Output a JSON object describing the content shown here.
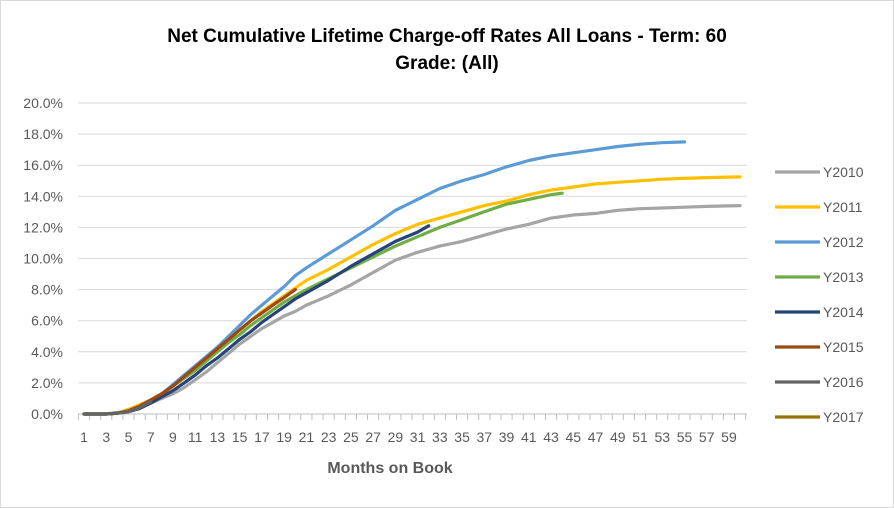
{
  "chart_data": {
    "type": "line",
    "title_lines": [
      "Net Cumulative Lifetime Charge-off Rates All Loans - Term: 60",
      "Grade: (All)"
    ],
    "xlabel": "Months on Book",
    "ylabel": "",
    "xlim": [
      1,
      60
    ],
    "ylim": [
      0,
      20
    ],
    "y_ticks": [
      0,
      2,
      4,
      6,
      8,
      10,
      12,
      14,
      16,
      18,
      20
    ],
    "y_tick_labels": [
      "0.0%",
      "2.0%",
      "4.0%",
      "6.0%",
      "8.0%",
      "10.0%",
      "12.0%",
      "14.0%",
      "16.0%",
      "18.0%",
      "20.0%"
    ],
    "x_tick_labels": [
      "1",
      "3",
      "5",
      "7",
      "9",
      "11",
      "13",
      "15",
      "17",
      "19",
      "21",
      "23",
      "25",
      "27",
      "29",
      "31",
      "33",
      "35",
      "37",
      "39",
      "41",
      "43",
      "45",
      "47",
      "49",
      "51",
      "53",
      "55",
      "57",
      "59"
    ],
    "grid": "horizontal",
    "legend_position": "right",
    "series": [
      {
        "name": "Y2010",
        "color": "#a5a5a5",
        "points": [
          [
            1,
            0
          ],
          [
            3,
            0
          ],
          [
            4,
            0.1
          ],
          [
            5,
            0.2
          ],
          [
            6,
            0.4
          ],
          [
            7,
            0.7
          ],
          [
            8,
            1.0
          ],
          [
            9,
            1.3
          ],
          [
            10,
            1.7
          ],
          [
            11,
            2.2
          ],
          [
            12,
            2.7
          ],
          [
            13,
            3.3
          ],
          [
            14,
            3.9
          ],
          [
            15,
            4.5
          ],
          [
            16,
            5.0
          ],
          [
            17,
            5.5
          ],
          [
            18,
            5.9
          ],
          [
            19,
            6.3
          ],
          [
            20,
            6.6
          ],
          [
            21,
            7.0
          ],
          [
            23,
            7.6
          ],
          [
            25,
            8.3
          ],
          [
            27,
            9.1
          ],
          [
            29,
            9.9
          ],
          [
            31,
            10.4
          ],
          [
            33,
            10.8
          ],
          [
            35,
            11.1
          ],
          [
            37,
            11.5
          ],
          [
            39,
            11.9
          ],
          [
            41,
            12.2
          ],
          [
            43,
            12.6
          ],
          [
            45,
            12.8
          ],
          [
            47,
            12.9
          ],
          [
            49,
            13.1
          ],
          [
            51,
            13.2
          ],
          [
            53,
            13.25
          ],
          [
            55,
            13.3
          ],
          [
            57,
            13.35
          ],
          [
            60,
            13.4
          ]
        ]
      },
      {
        "name": "Y2011",
        "color": "#ffc000",
        "points": [
          [
            1,
            0
          ],
          [
            3,
            0
          ],
          [
            4,
            0.05
          ],
          [
            5,
            0.3
          ],
          [
            6,
            0.6
          ],
          [
            7,
            0.9
          ],
          [
            8,
            1.3
          ],
          [
            9,
            1.8
          ],
          [
            10,
            2.4
          ],
          [
            11,
            3.0
          ],
          [
            12,
            3.6
          ],
          [
            13,
            4.2
          ],
          [
            14,
            4.8
          ],
          [
            15,
            5.4
          ],
          [
            16,
            6.0
          ],
          [
            17,
            6.6
          ],
          [
            18,
            7.1
          ],
          [
            19,
            7.6
          ],
          [
            20,
            8.1
          ],
          [
            21,
            8.6
          ],
          [
            23,
            9.3
          ],
          [
            25,
            10.1
          ],
          [
            27,
            10.9
          ],
          [
            29,
            11.6
          ],
          [
            31,
            12.2
          ],
          [
            33,
            12.6
          ],
          [
            35,
            13.0
          ],
          [
            37,
            13.4
          ],
          [
            39,
            13.7
          ],
          [
            41,
            14.1
          ],
          [
            43,
            14.4
          ],
          [
            45,
            14.6
          ],
          [
            47,
            14.8
          ],
          [
            49,
            14.9
          ],
          [
            51,
            15.0
          ],
          [
            53,
            15.1
          ],
          [
            55,
            15.15
          ],
          [
            57,
            15.2
          ],
          [
            60,
            15.25
          ]
        ]
      },
      {
        "name": "Y2012",
        "color": "#5b9bd5",
        "points": [
          [
            1,
            0
          ],
          [
            3,
            0
          ],
          [
            4,
            0.05
          ],
          [
            5,
            0.2
          ],
          [
            6,
            0.5
          ],
          [
            7,
            0.9
          ],
          [
            8,
            1.3
          ],
          [
            9,
            1.9
          ],
          [
            10,
            2.5
          ],
          [
            11,
            3.1
          ],
          [
            12,
            3.7
          ],
          [
            13,
            4.3
          ],
          [
            14,
            5.0
          ],
          [
            15,
            5.7
          ],
          [
            16,
            6.4
          ],
          [
            17,
            7.0
          ],
          [
            18,
            7.6
          ],
          [
            19,
            8.2
          ],
          [
            20,
            8.9
          ],
          [
            21,
            9.4
          ],
          [
            23,
            10.3
          ],
          [
            25,
            11.2
          ],
          [
            27,
            12.1
          ],
          [
            29,
            13.1
          ],
          [
            31,
            13.8
          ],
          [
            33,
            14.5
          ],
          [
            35,
            15.0
          ],
          [
            37,
            15.4
          ],
          [
            39,
            15.9
          ],
          [
            41,
            16.3
          ],
          [
            43,
            16.6
          ],
          [
            45,
            16.8
          ],
          [
            47,
            17.0
          ],
          [
            49,
            17.2
          ],
          [
            51,
            17.35
          ],
          [
            53,
            17.45
          ],
          [
            55,
            17.5
          ]
        ]
      },
      {
        "name": "Y2013",
        "color": "#70ad47",
        "points": [
          [
            1,
            0
          ],
          [
            3,
            0
          ],
          [
            4,
            0.05
          ],
          [
            5,
            0.2
          ],
          [
            6,
            0.5
          ],
          [
            7,
            0.9
          ],
          [
            8,
            1.3
          ],
          [
            9,
            1.8
          ],
          [
            10,
            2.3
          ],
          [
            11,
            2.8
          ],
          [
            12,
            3.4
          ],
          [
            13,
            4.0
          ],
          [
            14,
            4.6
          ],
          [
            15,
            5.1
          ],
          [
            16,
            5.7
          ],
          [
            17,
            6.2
          ],
          [
            18,
            6.7
          ],
          [
            19,
            7.2
          ],
          [
            20,
            7.6
          ],
          [
            21,
            8.0
          ],
          [
            23,
            8.7
          ],
          [
            25,
            9.4
          ],
          [
            27,
            10.1
          ],
          [
            29,
            10.8
          ],
          [
            31,
            11.4
          ],
          [
            33,
            12.0
          ],
          [
            35,
            12.5
          ],
          [
            37,
            13.0
          ],
          [
            39,
            13.5
          ],
          [
            41,
            13.8
          ],
          [
            43,
            14.1
          ],
          [
            44,
            14.2
          ]
        ]
      },
      {
        "name": "Y2014",
        "color": "#264478",
        "points": [
          [
            1,
            0
          ],
          [
            3,
            0
          ],
          [
            4,
            0.05
          ],
          [
            5,
            0.15
          ],
          [
            6,
            0.35
          ],
          [
            7,
            0.7
          ],
          [
            8,
            1.1
          ],
          [
            9,
            1.5
          ],
          [
            10,
            2.0
          ],
          [
            11,
            2.5
          ],
          [
            12,
            3.1
          ],
          [
            13,
            3.6
          ],
          [
            14,
            4.2
          ],
          [
            15,
            4.8
          ],
          [
            16,
            5.3
          ],
          [
            17,
            5.9
          ],
          [
            18,
            6.4
          ],
          [
            19,
            6.9
          ],
          [
            20,
            7.4
          ],
          [
            21,
            7.8
          ],
          [
            23,
            8.6
          ],
          [
            25,
            9.5
          ],
          [
            27,
            10.3
          ],
          [
            29,
            11.1
          ],
          [
            31,
            11.7
          ],
          [
            32,
            12.1
          ]
        ]
      },
      {
        "name": "Y2015",
        "color": "#9e480e",
        "points": [
          [
            1,
            0
          ],
          [
            3,
            0
          ],
          [
            4,
            0.05
          ],
          [
            5,
            0.2
          ],
          [
            6,
            0.5
          ],
          [
            7,
            0.9
          ],
          [
            8,
            1.3
          ],
          [
            9,
            1.8
          ],
          [
            10,
            2.4
          ],
          [
            11,
            3.0
          ],
          [
            12,
            3.6
          ],
          [
            13,
            4.2
          ],
          [
            14,
            4.8
          ],
          [
            15,
            5.4
          ],
          [
            16,
            6.0
          ],
          [
            17,
            6.5
          ],
          [
            18,
            7.0
          ],
          [
            19,
            7.5
          ],
          [
            20,
            8.0
          ]
        ]
      },
      {
        "name": "Y2016",
        "color": "#636363",
        "points": [
          [
            1,
            0
          ],
          [
            3,
            0
          ],
          [
            4,
            0.05
          ],
          [
            5,
            0.15
          ],
          [
            6,
            0.4
          ],
          [
            7,
            0.8
          ]
        ]
      },
      {
        "name": "Y2017",
        "color": "#997300",
        "points": []
      }
    ]
  }
}
